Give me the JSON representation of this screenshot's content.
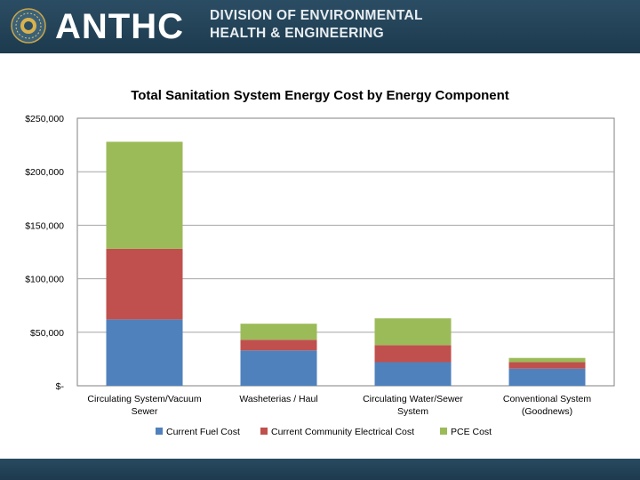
{
  "header": {
    "brand": "ANTHC",
    "division_line1": "DIVISION OF ENVIRONMENTAL",
    "division_line2": "HEALTH & ENGINEERING"
  },
  "colors": {
    "header_bg": "#1d3a4e",
    "fuel": "#4f81bd",
    "electrical": "#c0504d",
    "pce": "#9bbb59"
  },
  "chart_data": {
    "type": "bar",
    "stacked": true,
    "title": "Total Sanitation System Energy Cost  by Energy Component",
    "xlabel": "",
    "ylabel": "",
    "ylim": [
      0,
      250000
    ],
    "yticks": [
      0,
      50000,
      100000,
      150000,
      200000,
      250000
    ],
    "ytick_labels": [
      "$-",
      "$50,000",
      "$100,000",
      "$150,000",
      "$200,000",
      "$250,000"
    ],
    "grid": true,
    "legend_position": "bottom",
    "categories": [
      [
        "Circulating System/Vacuum",
        "Sewer"
      ],
      [
        "Washeterias / Haul"
      ],
      [
        "Circulating Water/Sewer",
        "System"
      ],
      [
        "Conventional System",
        "(Goodnews)"
      ]
    ],
    "series": [
      {
        "name": "Current Fuel Cost",
        "color": "#4f81bd",
        "values": [
          62000,
          33000,
          22000,
          16000
        ]
      },
      {
        "name": "Current Community Electrical Cost",
        "color": "#c0504d",
        "values": [
          66000,
          10000,
          16000,
          6000
        ]
      },
      {
        "name": "PCE Cost",
        "color": "#9bbb59",
        "values": [
          100000,
          15000,
          25000,
          4000
        ]
      }
    ]
  }
}
